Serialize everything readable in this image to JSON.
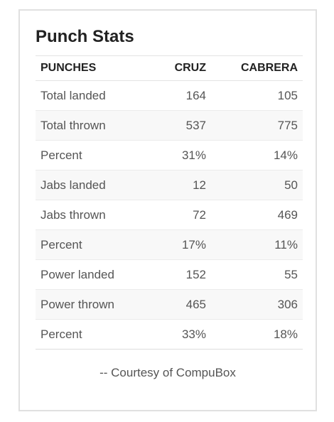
{
  "title": "Punch Stats",
  "table": {
    "headers": [
      "PUNCHES",
      "CRUZ",
      "CABRERA"
    ],
    "rows": [
      {
        "label": "Total landed",
        "cruz": "164",
        "cabrera": "105"
      },
      {
        "label": "Total thrown",
        "cruz": "537",
        "cabrera": "775"
      },
      {
        "label": "Percent",
        "cruz": "31%",
        "cabrera": "14%"
      },
      {
        "label": "Jabs landed",
        "cruz": "12",
        "cabrera": "50"
      },
      {
        "label": "Jabs thrown",
        "cruz": "72",
        "cabrera": "469"
      },
      {
        "label": "Percent",
        "cruz": "17%",
        "cabrera": "11%"
      },
      {
        "label": "Power landed",
        "cruz": "152",
        "cabrera": "55"
      },
      {
        "label": "Power thrown",
        "cruz": "465",
        "cabrera": "306"
      },
      {
        "label": "Percent",
        "cruz": "33%",
        "cabrera": "18%"
      }
    ]
  },
  "credit": "-- Courtesy of CompuBox"
}
